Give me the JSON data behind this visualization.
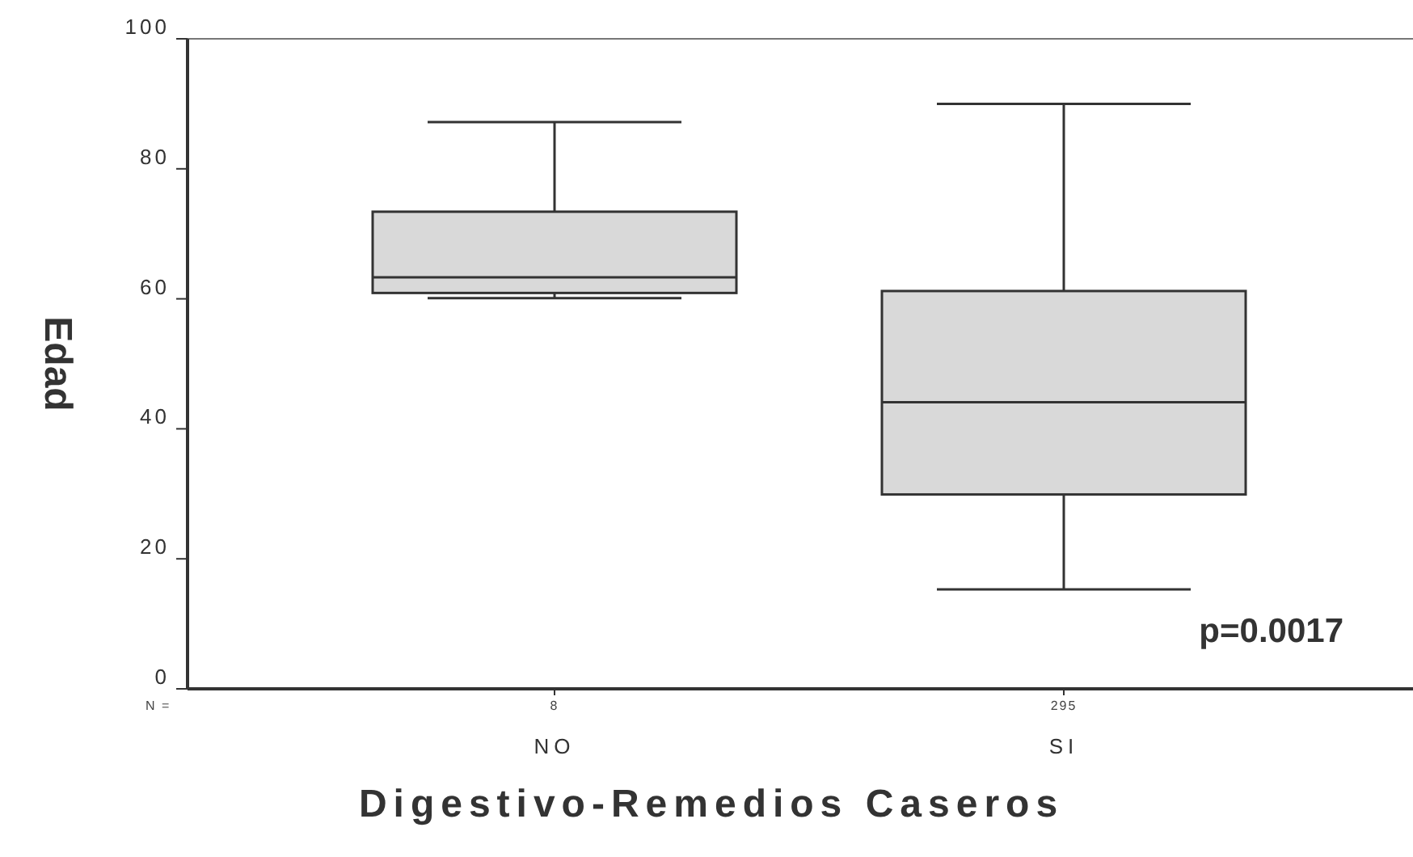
{
  "chart_data": {
    "type": "box",
    "xlabel": "Digestivo-Remedios Caseros",
    "ylabel": "Edad",
    "categories": [
      "NO",
      "SI"
    ],
    "series": [
      {
        "color": "#d9d9d9",
        "boxes": [
          {
            "low": 60.1,
            "q1": 60.9,
            "median": 63.3,
            "q3": 73.4,
            "high": 87.2
          },
          {
            "low": 15.3,
            "q1": 29.9,
            "median": 44.1,
            "q3": 61.2,
            "high": 90
          }
        ]
      }
    ],
    "ylim": [
      0,
      100
    ],
    "yticks": [
      0,
      20,
      40,
      60,
      80,
      100
    ],
    "grid": false,
    "annotations": [
      "N =",
      "8",
      "295",
      "p=0.0017"
    ]
  }
}
